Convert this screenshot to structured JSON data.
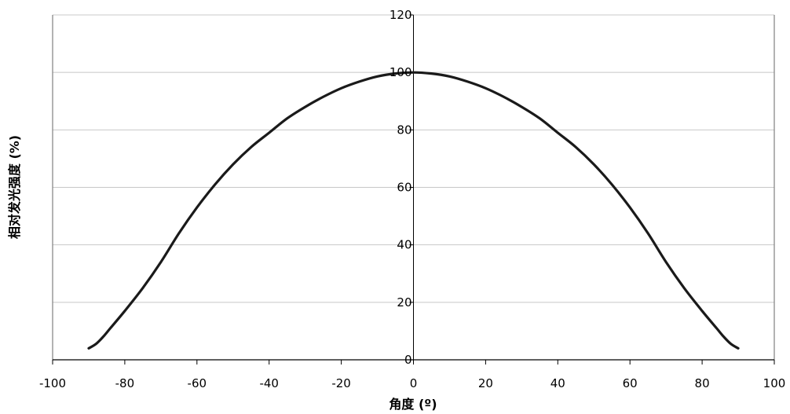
{
  "chart_data": {
    "type": "line",
    "title": "",
    "xlabel": "角度 (º)",
    "ylabel": "相对发光强度 (%)",
    "xlim": [
      -100,
      100
    ],
    "ylim": [
      0,
      120
    ],
    "x_ticks": [
      -100,
      -80,
      -60,
      -40,
      -20,
      0,
      20,
      40,
      60,
      80,
      100
    ],
    "y_ticks": [
      0,
      20,
      40,
      60,
      80,
      100,
      120
    ],
    "grid": {
      "horizontal": true,
      "vertical": false
    },
    "colors": {
      "line": "#1a1a1a",
      "grid": "#c8c8c8",
      "axis": "#808080"
    },
    "series": [
      {
        "x": [
          -90,
          -88,
          -86,
          -84,
          -80,
          -75,
          -70,
          -65,
          -60,
          -55,
          -50,
          -45,
          -40,
          -35,
          -30,
          -25,
          -20,
          -15,
          -10,
          -5,
          0,
          5,
          10,
          15,
          20,
          25,
          30,
          35,
          40,
          45,
          50,
          55,
          60,
          65,
          70,
          75,
          80,
          84,
          86,
          88,
          90
        ],
        "y": [
          4,
          5.5,
          8,
          11,
          17,
          25,
          34,
          44,
          53,
          61,
          68,
          74,
          79,
          84,
          88,
          91.5,
          94.5,
          96.8,
          98.6,
          99.6,
          100,
          99.6,
          98.6,
          96.8,
          94.5,
          91.5,
          88,
          84,
          79,
          74,
          68,
          61,
          53,
          44,
          34,
          25,
          17,
          11,
          8,
          5.5,
          4
        ]
      }
    ]
  }
}
